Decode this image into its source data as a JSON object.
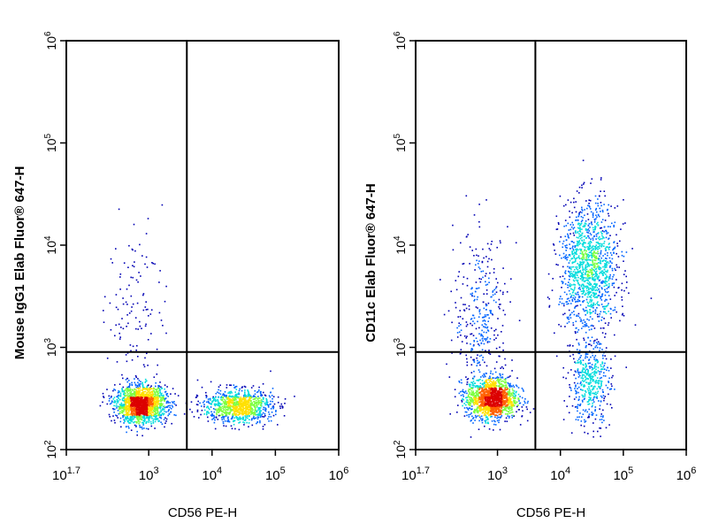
{
  "chart_data": [
    {
      "type": "scatter",
      "subtype": "flow-cytometry-density-dot-plot",
      "xlabel": "CD56 PE-H",
      "ylabel": "Mouse IgG1 Elab Fluor® 647-H",
      "xscale": "log",
      "yscale": "log",
      "xlim": [
        50,
        1000000
      ],
      "ylim": [
        100,
        1000000
      ],
      "x_ticks": [
        {
          "base": "10",
          "exp": "1.7",
          "value": 50
        },
        {
          "base": "10",
          "exp": "3",
          "value": 1000
        },
        {
          "base": "10",
          "exp": "4",
          "value": 10000
        },
        {
          "base": "10",
          "exp": "5",
          "value": 100000
        },
        {
          "base": "10",
          "exp": "6",
          "value": 1000000
        }
      ],
      "y_ticks": [
        {
          "base": "10",
          "exp": "2",
          "value": 100
        },
        {
          "base": "10",
          "exp": "3",
          "value": 1000
        },
        {
          "base": "10",
          "exp": "4",
          "value": 10000
        },
        {
          "base": "10",
          "exp": "5",
          "value": 100000
        },
        {
          "base": "10",
          "exp": "6",
          "value": 1000000
        }
      ],
      "gate": {
        "x": 4000,
        "y": 900
      },
      "populations": [
        {
          "x": 750,
          "y": 280,
          "count": 1700
        },
        {
          "x": 25000,
          "y": 270,
          "count": 1000
        },
        {
          "x": 600,
          "y": 2500,
          "count": 120
        }
      ],
      "density_colors": [
        "#0000b4",
        "#0064ff",
        "#00dcdc",
        "#7cff40",
        "#ffe000",
        "#ff6000",
        "#dc0000"
      ],
      "grid": false,
      "legend": "none"
    },
    {
      "type": "scatter",
      "subtype": "flow-cytometry-density-dot-plot",
      "xlabel": "CD56 PE-H",
      "ylabel": "CD11c Elab Fluor® 647-H",
      "xscale": "log",
      "yscale": "log",
      "xlim": [
        50,
        1000000
      ],
      "ylim": [
        100,
        1000000
      ],
      "x_ticks": [
        {
          "base": "10",
          "exp": "1.7",
          "value": 50
        },
        {
          "base": "10",
          "exp": "3",
          "value": 1000
        },
        {
          "base": "10",
          "exp": "4",
          "value": 10000
        },
        {
          "base": "10",
          "exp": "5",
          "value": 100000
        },
        {
          "base": "10",
          "exp": "6",
          "value": 1000000
        }
      ],
      "y_ticks": [
        {
          "base": "10",
          "exp": "2",
          "value": 100
        },
        {
          "base": "10",
          "exp": "3",
          "value": 1000
        },
        {
          "base": "10",
          "exp": "4",
          "value": 10000
        },
        {
          "base": "10",
          "exp": "5",
          "value": 100000
        },
        {
          "base": "10",
          "exp": "6",
          "value": 1000000
        }
      ],
      "gate": {
        "x": 4000,
        "y": 900
      },
      "populations": [
        {
          "x": 800,
          "y": 320,
          "count": 1500
        },
        {
          "x": 28000,
          "y": 6000,
          "count": 1300
        },
        {
          "x": 28000,
          "y": 450,
          "count": 450
        },
        {
          "x": 550,
          "y": 2000,
          "count": 350
        }
      ],
      "density_colors": [
        "#0000b4",
        "#0064ff",
        "#00dcdc",
        "#7cff40",
        "#ffe000",
        "#ff6000",
        "#dc0000"
      ],
      "grid": false,
      "legend": "none"
    }
  ]
}
